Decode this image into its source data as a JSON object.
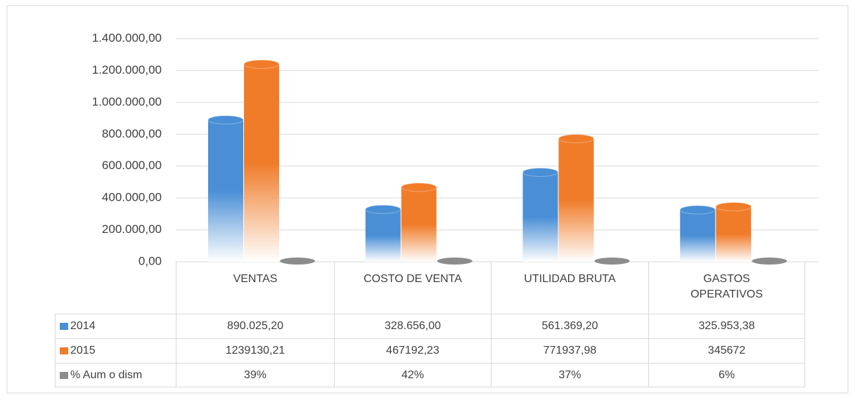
{
  "chart_data": {
    "type": "bar",
    "categories": [
      "VENTAS",
      "COSTO DE VENTA",
      "UTILIDAD BRUTA",
      "GASTOS OPERATIVOS"
    ],
    "series": [
      {
        "name": "2014",
        "color": "#4a8fd6",
        "values": [
          890025.2,
          328656,
          561369.2,
          325953.38
        ],
        "value_labels": [
          "890.025,20",
          "328.656,00",
          "561.369,20",
          "325.953,38"
        ]
      },
      {
        "name": "2015",
        "color": "#f07c2a",
        "values": [
          1239130.21,
          467192.23,
          771937.98,
          345672
        ],
        "value_labels": [
          "1239130,21",
          "467192,23",
          "771937,98",
          "345672"
        ]
      },
      {
        "name": "% Aum o dism",
        "color": "#8c8c8c",
        "values": [
          39,
          42,
          37,
          6
        ],
        "value_labels": [
          "39%",
          "42%",
          "37%",
          "6%"
        ]
      }
    ],
    "ylim": [
      0,
      1400000
    ],
    "yticks": [
      {
        "value": 0,
        "label": "0,00"
      },
      {
        "value": 200000,
        "label": "200.000,00"
      },
      {
        "value": 400000,
        "label": "400.000,00"
      },
      {
        "value": 600000,
        "label": "600.000,00"
      },
      {
        "value": 800000,
        "label": "800.000,00"
      },
      {
        "value": 1000000,
        "label": "1.000.000,00"
      },
      {
        "value": 1200000,
        "label": "1.200.000,00"
      },
      {
        "value": 1400000,
        "label": "1.400.000,00"
      }
    ],
    "grid": true
  }
}
